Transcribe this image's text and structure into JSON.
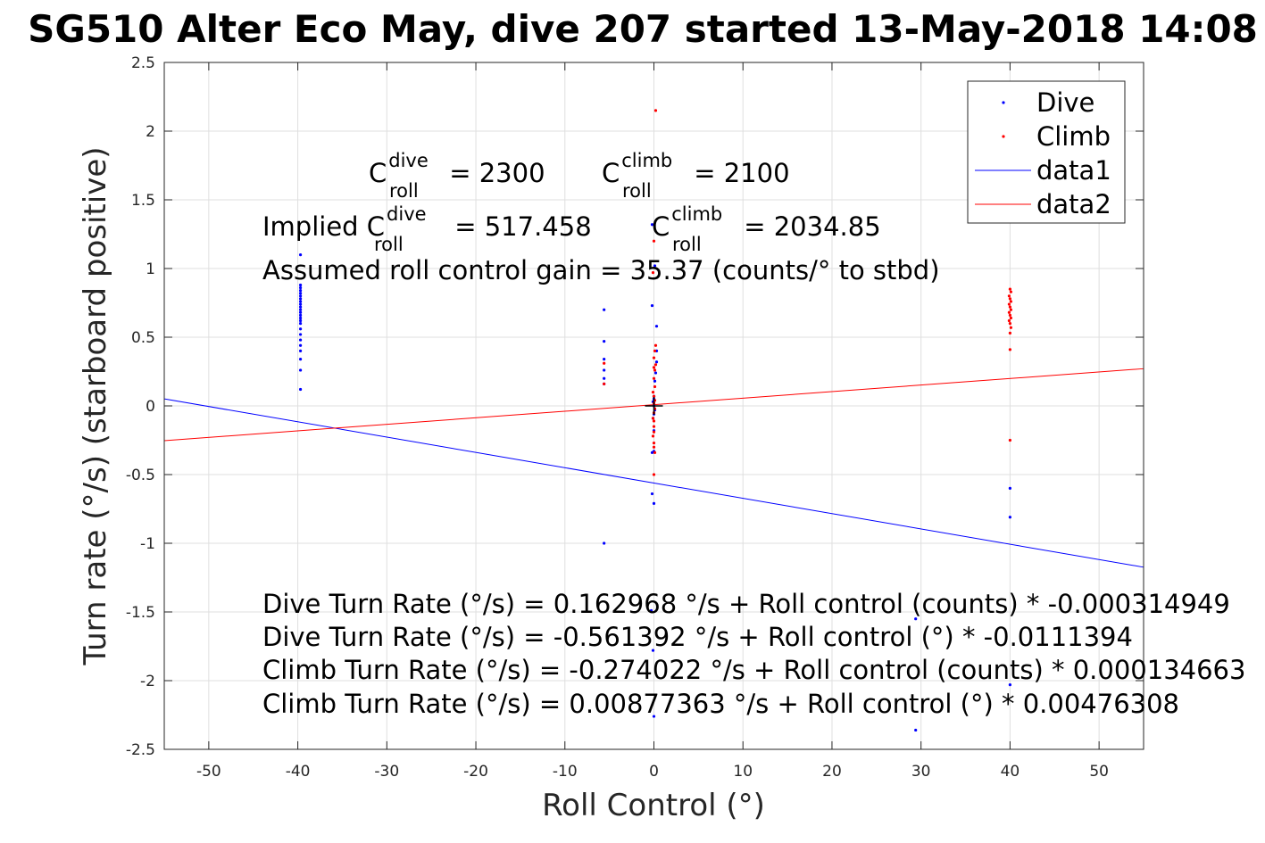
{
  "chart_data": {
    "type": "scatter",
    "title": "SG510 Alter Eco May, dive 207 started 13-May-2018 14:08",
    "xlabel": "Roll Control (°)",
    "ylabel": "Turn rate (°/s) (starboard positive)",
    "xlim": [
      -55,
      55
    ],
    "ylim": [
      -2.5,
      2.5
    ],
    "x_ticks": [
      -50,
      -40,
      -30,
      -20,
      -10,
      0,
      10,
      20,
      30,
      40,
      50
    ],
    "x_tick_labels": [
      "-50",
      "-40",
      "-30",
      "-20",
      "-10",
      "0",
      "10",
      "20",
      "30",
      "40",
      "50"
    ],
    "y_ticks": [
      -2.5,
      -2,
      -1.5,
      -1,
      -0.5,
      0,
      0.5,
      1,
      1.5,
      2,
      2.5
    ],
    "y_tick_labels": [
      "-2.5",
      "-2",
      "-1.5",
      "-1",
      "-0.5",
      "0",
      "0.5",
      "1",
      "1.5",
      "2",
      "2.5"
    ],
    "grid": true,
    "legend_position": "top-right",
    "series": [
      {
        "name": "Dive",
        "kind": "points",
        "color": "#0000ff",
        "points": [
          [
            -39.7,
            1.1
          ],
          [
            -39.7,
            0.88
          ],
          [
            -39.7,
            0.86
          ],
          [
            -39.7,
            0.84
          ],
          [
            -39.7,
            0.82
          ],
          [
            -39.7,
            0.8
          ],
          [
            -39.7,
            0.78
          ],
          [
            -39.7,
            0.76
          ],
          [
            -39.7,
            0.74
          ],
          [
            -39.7,
            0.72
          ],
          [
            -39.7,
            0.7
          ],
          [
            -39.7,
            0.68
          ],
          [
            -39.7,
            0.66
          ],
          [
            -39.7,
            0.64
          ],
          [
            -39.7,
            0.62
          ],
          [
            -39.7,
            0.6
          ],
          [
            -39.7,
            0.56
          ],
          [
            -39.7,
            0.52
          ],
          [
            -39.7,
            0.48
          ],
          [
            -39.7,
            0.44
          ],
          [
            -39.7,
            0.4
          ],
          [
            -39.7,
            0.34
          ],
          [
            -39.7,
            0.26
          ],
          [
            -39.7,
            0.12
          ],
          [
            -5.6,
            0.7
          ],
          [
            -5.6,
            0.47
          ],
          [
            -5.6,
            0.34
          ],
          [
            -5.6,
            0.26
          ],
          [
            -5.6,
            0.2
          ],
          [
            -5.6,
            0.16
          ],
          [
            -5.6,
            -1.0
          ],
          [
            -0.2,
            1.32
          ],
          [
            -0.2,
            0.73
          ],
          [
            0.1,
            1.02
          ],
          [
            0.3,
            0.58
          ],
          [
            0.3,
            0.4
          ],
          [
            0.3,
            0.32
          ],
          [
            0.2,
            0.24
          ],
          [
            0.1,
            0.18
          ],
          [
            0.0,
            0.07
          ],
          [
            0.0,
            0.05
          ],
          [
            -0.1,
            0.03
          ],
          [
            0.0,
            0.0
          ],
          [
            0.1,
            -0.03
          ],
          [
            0.0,
            -0.06
          ],
          [
            -0.1,
            -0.09
          ],
          [
            0.0,
            -0.18
          ],
          [
            -0.2,
            -0.34
          ],
          [
            0.0,
            -0.33
          ],
          [
            -0.2,
            -0.64
          ],
          [
            0.0,
            -0.71
          ],
          [
            -0.3,
            -1.49
          ],
          [
            -0.1,
            -1.78
          ],
          [
            0.0,
            -2.26
          ],
          [
            29.4,
            -1.55
          ],
          [
            29.4,
            -2.36
          ],
          [
            40.0,
            -0.6
          ],
          [
            40.0,
            -0.81
          ],
          [
            40.0,
            -2.03
          ]
        ]
      },
      {
        "name": "Climb",
        "kind": "points",
        "color": "#ff0000",
        "points": [
          [
            0.2,
            2.15
          ],
          [
            0.0,
            1.2
          ],
          [
            -0.1,
            0.97
          ],
          [
            0.2,
            0.44
          ],
          [
            0.1,
            0.4
          ],
          [
            0.0,
            0.35
          ],
          [
            0.2,
            0.3
          ],
          [
            0.0,
            0.28
          ],
          [
            0.1,
            0.26
          ],
          [
            0.0,
            0.2
          ],
          [
            0.1,
            0.14
          ],
          [
            -0.1,
            0.1
          ],
          [
            0.0,
            0.07
          ],
          [
            0.1,
            0.04
          ],
          [
            0.0,
            0.02
          ],
          [
            0.1,
            -0.02
          ],
          [
            0.0,
            -0.05
          ],
          [
            -0.1,
            -0.09
          ],
          [
            0.0,
            -0.11
          ],
          [
            0.0,
            -0.15
          ],
          [
            0.0,
            -0.19
          ],
          [
            -0.1,
            -0.22
          ],
          [
            0.0,
            -0.27
          ],
          [
            0.0,
            -0.3
          ],
          [
            0.1,
            -0.34
          ],
          [
            0.0,
            -0.5
          ],
          [
            -5.6,
            0.31
          ],
          [
            -5.6,
            0.16
          ],
          [
            40.0,
            0.85
          ],
          [
            40.1,
            0.83
          ],
          [
            39.9,
            0.8
          ],
          [
            40.0,
            0.78
          ],
          [
            40.1,
            0.76
          ],
          [
            39.9,
            0.74
          ],
          [
            40.0,
            0.72
          ],
          [
            40.1,
            0.7
          ],
          [
            39.9,
            0.68
          ],
          [
            40.0,
            0.66
          ],
          [
            40.1,
            0.64
          ],
          [
            39.9,
            0.62
          ],
          [
            40.0,
            0.6
          ],
          [
            40.1,
            0.57
          ],
          [
            40.0,
            0.53
          ],
          [
            40.0,
            0.41
          ],
          [
            40.0,
            -0.25
          ]
        ]
      },
      {
        "name": "data1",
        "kind": "line",
        "color": "#0000ff",
        "x": [
          -55,
          55
        ],
        "y": [
          0.0513,
          -1.1741
        ]
      },
      {
        "name": "data2",
        "kind": "line",
        "color": "#ff0000",
        "x": [
          -55,
          55
        ],
        "y": [
          -0.2532,
          0.2707
        ]
      }
    ],
    "origin_marker": {
      "x": 0,
      "y": 0,
      "symbol": "+",
      "color": "#000000"
    },
    "annotations": [
      {
        "prefix": "C",
        "sup": "dive",
        "sub": "roll",
        "suffix": " = 2300"
      },
      {
        "prefix": "C",
        "sup": "climb",
        "sub": "roll",
        "suffix": " = 2100"
      },
      {
        "prefix": "Implied C",
        "sup": "dive",
        "sub": "roll",
        "suffix": " = 517.458"
      },
      {
        "prefix": "C",
        "sup": "climb",
        "sub": "roll",
        "suffix": " = 2034.85"
      },
      {
        "text": "Assumed roll control gain = 35.37 (counts/° to stbd)"
      },
      {
        "text": "Dive Turn Rate (°/s) = 0.162968 °/s + Roll control (counts) * -0.000314949"
      },
      {
        "text": "Dive Turn Rate (°/s) = -0.561392 °/s + Roll control (°) * -0.0111394"
      },
      {
        "text": "Climb Turn Rate (°/s) = -0.274022 °/s + Roll control (counts) * 0.000134663"
      },
      {
        "text": "Climb Turn Rate (°/s) = 0.00877363 °/s + Roll control (°) * 0.00476308"
      }
    ]
  }
}
